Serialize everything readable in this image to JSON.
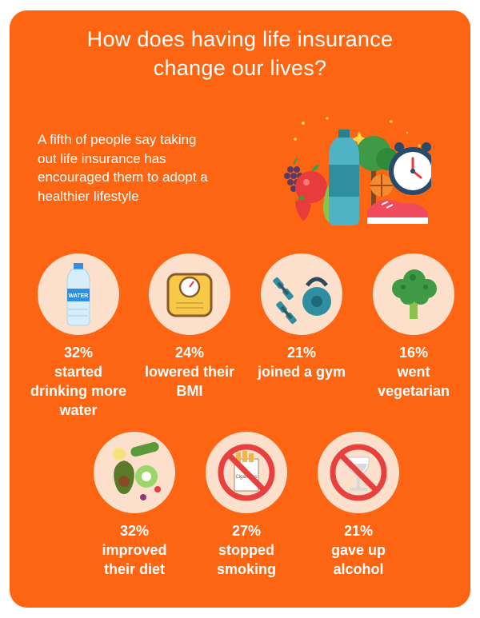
{
  "title": {
    "line1": "How does having life insurance",
    "line2": "change our lives?"
  },
  "intro": {
    "line1": "A fifth of people say taking",
    "line2": "out life insurance has",
    "line3": "encouraged them to adopt a",
    "line4": "healthier lifestyle"
  },
  "colors": {
    "background": "#fd6512",
    "circle": "#fde0cc",
    "text": "#ffffff",
    "prohibition": "#e8403f"
  },
  "hero": {
    "icons": [
      "apple-icon",
      "water-bottle-icon",
      "alarm-clock-icon",
      "sneaker-icon",
      "pear-icon",
      "grapes-icon"
    ]
  },
  "stats": [
    {
      "percent": "32%",
      "line1": "started",
      "line2": "drinking more",
      "line3": "water",
      "icon": "water-bottle-icon",
      "bottle_label": "WATER"
    },
    {
      "percent": "24%",
      "line1": "lowered their",
      "line2": "BMI",
      "icon": "weighing-scale-icon"
    },
    {
      "percent": "21%",
      "line1": "joined a gym",
      "icon": "dumbbells-kettlebell-icon"
    },
    {
      "percent": "16%",
      "line1": "went",
      "line2": "vegetarian",
      "icon": "broccoli-icon"
    },
    {
      "percent": "32%",
      "line1": "improved",
      "line2": "their diet",
      "icon": "fruit-vegetables-icon"
    },
    {
      "percent": "27%",
      "line1": "stopped",
      "line2": "smoking",
      "icon": "no-smoking-icon",
      "pack_label": "Cigarettes"
    },
    {
      "percent": "21%",
      "line1": "gave up",
      "line2": "alcohol",
      "icon": "no-alcohol-icon"
    }
  ]
}
